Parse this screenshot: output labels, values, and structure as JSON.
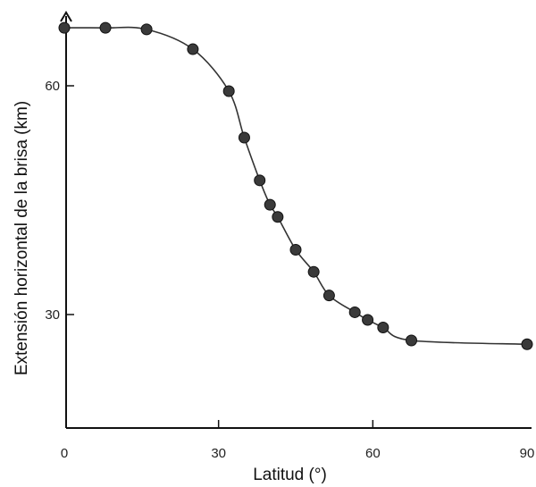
{
  "chart_data": {
    "type": "scatter",
    "title": "",
    "xlabel": "Latitud (°)",
    "ylabel": "Extensión horizontal de la brisa (km)",
    "x_tick_labels": [
      "0",
      "30",
      "60",
      "90"
    ],
    "y_tick_labels": [
      "30",
      "60"
    ],
    "x_tick_positions": [
      0,
      30,
      60,
      90
    ],
    "y_tick_positions": [
      30,
      60
    ],
    "xlim": [
      0,
      90
    ],
    "ylim": [
      15,
      70
    ],
    "grid": false,
    "legend": "none",
    "point_color": "#3a3a3a",
    "curve_color": "#333333",
    "series": [
      {
        "values": [
          {
            "x": 0,
            "y": 67.6
          },
          {
            "x": 8,
            "y": 67.6
          },
          {
            "x": 16,
            "y": 67.4
          },
          {
            "x": 25,
            "y": 64.8
          },
          {
            "x": 32,
            "y": 59.3
          },
          {
            "x": 35,
            "y": 53.2
          },
          {
            "x": 38,
            "y": 47.6
          },
          {
            "x": 40,
            "y": 44.4
          },
          {
            "x": 41.5,
            "y": 42.8
          },
          {
            "x": 45,
            "y": 38.5
          },
          {
            "x": 48.5,
            "y": 35.6
          },
          {
            "x": 51.5,
            "y": 32.5
          },
          {
            "x": 56.5,
            "y": 30.3
          },
          {
            "x": 59,
            "y": 29.3
          },
          {
            "x": 62,
            "y": 28.3
          },
          {
            "x": 67.5,
            "y": 26.6
          },
          {
            "x": 90,
            "y": 26.1
          }
        ]
      }
    ]
  }
}
